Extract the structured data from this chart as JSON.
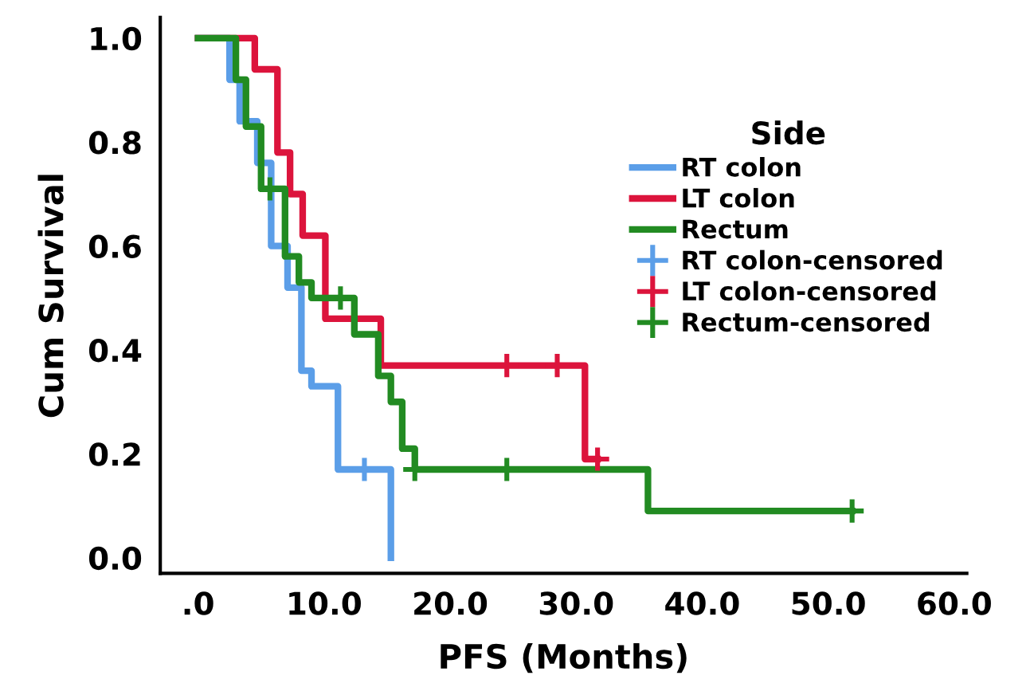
{
  "chart_data": {
    "type": "step",
    "xlabel": "PFS (Months)",
    "ylabel": "Cum Survival",
    "legend_title": "Side",
    "legend": "right",
    "grid": false,
    "xlim": [
      -3,
      61
    ],
    "ylim": [
      -0.03,
      1.04
    ],
    "xticks": [
      {
        "value": 0,
        "label": ".0"
      },
      {
        "value": 10,
        "label": "10.0"
      },
      {
        "value": 20,
        "label": "20.0"
      },
      {
        "value": 30,
        "label": "30.0"
      },
      {
        "value": 40,
        "label": "40.0"
      },
      {
        "value": 50,
        "label": "50.0"
      },
      {
        "value": 60,
        "label": "60.0"
      }
    ],
    "yticks": [
      {
        "value": 0,
        "label": "0.0"
      },
      {
        "value": 0.2,
        "label": "0.2"
      },
      {
        "value": 0.4,
        "label": "0.4"
      },
      {
        "value": 0.6,
        "label": "0.6"
      },
      {
        "value": 0.8,
        "label": "0.8"
      },
      {
        "value": 1,
        "label": "1.0"
      }
    ],
    "series": [
      {
        "name": "RT colon",
        "color": "#5b9ee8",
        "x": [
          0,
          2.5,
          3.3,
          4.7,
          5.8,
          7.1,
          8.2,
          9.0,
          11.1,
          15.3
        ],
        "values": [
          1.0,
          0.92,
          0.84,
          0.76,
          0.6,
          0.52,
          0.36,
          0.33,
          0.17,
          0.0
        ]
      },
      {
        "name": "LT colon",
        "color": "#dc143c",
        "x": [
          0,
          4.5,
          6.3,
          7.3,
          8.3,
          10.1,
          14.5,
          30.7,
          31.7
        ],
        "values": [
          1.0,
          0.94,
          0.78,
          0.7,
          0.62,
          0.46,
          0.37,
          0.19,
          0.19
        ]
      },
      {
        "name": "Rectum",
        "color": "#228b22",
        "x": [
          0,
          3.0,
          3.8,
          5.0,
          6.9,
          8.0,
          9.0,
          12.4,
          14.3,
          15.3,
          16.2,
          17.2,
          35.7,
          51.9
        ],
        "values": [
          1.0,
          0.92,
          0.83,
          0.71,
          0.58,
          0.53,
          0.5,
          0.43,
          0.35,
          0.3,
          0.21,
          0.17,
          0.09,
          0.09
        ]
      },
      {
        "name": "RT colon-censored",
        "color": "#5b9ee8",
        "type": "scatter",
        "marker": "cross",
        "x": [
          13.2
        ],
        "values": [
          0.17
        ]
      },
      {
        "name": "LT colon-censored",
        "color": "#dc143c",
        "type": "scatter",
        "marker": "cross",
        "x": [
          24.5,
          28.5,
          31.7
        ],
        "values": [
          0.37,
          0.37,
          0.19
        ]
      },
      {
        "name": "Rectum-censored",
        "color": "#228b22",
        "type": "scatter",
        "marker": "cross",
        "x": [
          5.7,
          11.3,
          17.2,
          24.5,
          51.9
        ],
        "values": [
          0.71,
          0.5,
          0.17,
          0.17,
          0.09
        ]
      }
    ]
  }
}
